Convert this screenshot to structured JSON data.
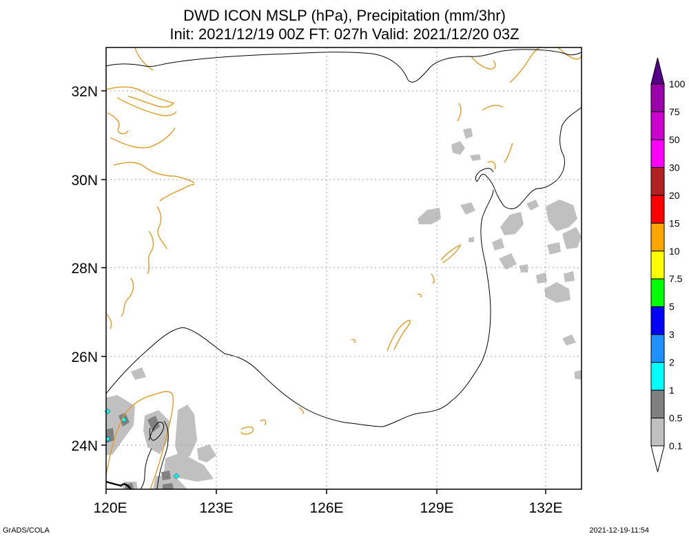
{
  "title": {
    "line1": "DWD ICON MSLP (hPa), Precipitation (mm/3hr)",
    "line2": "Init: 2021/12/19 00Z  FT: 027h  Valid: 2021/12/20 03Z"
  },
  "map": {
    "lon_range": [
      120,
      133
    ],
    "lat_range": [
      23,
      33
    ],
    "x_ticks": [
      "120E",
      "123E",
      "126E",
      "129E",
      "132E"
    ],
    "y_ticks": [
      "24N",
      "26N",
      "28N",
      "30N",
      "32N"
    ],
    "gridlines": true,
    "coastline_color": "#e0a030",
    "isobar_color": "#000000",
    "precip_colors": [
      "#c0c0c0",
      "#808080"
    ]
  },
  "colorbar": {
    "labels": [
      "0.1",
      "0.5",
      "1",
      "2",
      "3",
      "5",
      "7.5",
      "10",
      "15",
      "20",
      "30",
      "50",
      "75",
      "100"
    ],
    "colors": [
      "#ffffff",
      "#c0c0c0",
      "#808080",
      "#00ffff",
      "#1e90ff",
      "#0000ff",
      "#00ff00",
      "#ffff00",
      "#ffa500",
      "#ff0000",
      "#b22222",
      "#ff00ff",
      "#cc00cc",
      "#9900aa",
      "#550088"
    ]
  },
  "footer": {
    "left": "GrADS/COLA",
    "right": "2021-12-19-11:54"
  }
}
